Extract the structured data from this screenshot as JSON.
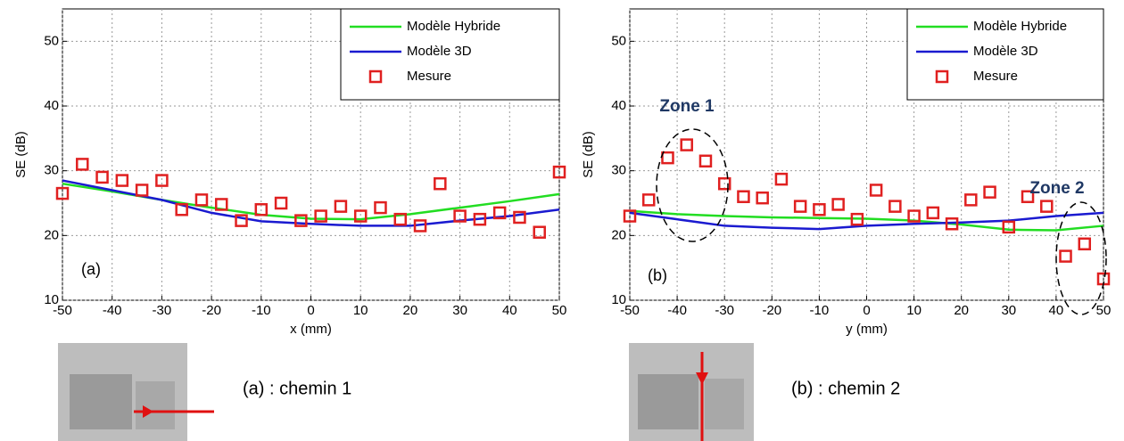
{
  "chart_data": [
    {
      "type": "line",
      "xlabel": "x (mm)",
      "ylabel": "SE (dB)",
      "panel_label": "(a)",
      "caption": "(a) : chemin 1",
      "xlim": [
        -50,
        50
      ],
      "ylim": [
        10,
        55
      ],
      "xticks": [
        -50,
        -40,
        -30,
        -20,
        -10,
        0,
        10,
        20,
        30,
        40,
        50
      ],
      "yticks": [
        10,
        20,
        30,
        40,
        50
      ],
      "grid": true,
      "legend": "upper right",
      "series": [
        {
          "name": "Modèle Hybride",
          "color": "#22dd22",
          "style": "line",
          "x": [
            -50,
            -40,
            -30,
            -20,
            -10,
            0,
            10,
            20,
            30,
            40,
            50
          ],
          "values": [
            28,
            26.8,
            25.5,
            24.3,
            23.2,
            22.6,
            22.5,
            23.3,
            24.3,
            25.3,
            26.4
          ]
        },
        {
          "name": "Modèle 3D",
          "color": "#1a1ad0",
          "style": "line",
          "x": [
            -50,
            -40,
            -30,
            -20,
            -10,
            0,
            10,
            20,
            30,
            40,
            50
          ],
          "values": [
            28.5,
            27,
            25.5,
            23.5,
            22.2,
            21.8,
            21.5,
            21.5,
            22.3,
            23,
            24
          ]
        },
        {
          "name": "Mesure",
          "color": "#e02020",
          "style": "square",
          "x": [
            -50,
            -46,
            -42,
            -38,
            -34,
            -30,
            -26,
            -22,
            -18,
            -14,
            -10,
            -6,
            -2,
            2,
            6,
            10,
            14,
            18,
            22,
            26,
            30,
            34,
            38,
            42,
            46,
            50
          ],
          "values": [
            26.5,
            31,
            29,
            28.5,
            27,
            28.5,
            24,
            25.5,
            24.8,
            22.3,
            24,
            25,
            22.3,
            23,
            24.5,
            23,
            24.3,
            22.5,
            21.5,
            28,
            23,
            22.5,
            23.5,
            22.8,
            20.5,
            29.8
          ]
        }
      ]
    },
    {
      "type": "line",
      "xlabel": "y (mm)",
      "ylabel": "SE (dB)",
      "panel_label": "(b)",
      "caption": "(b) : chemin 2",
      "xlim": [
        -50,
        50
      ],
      "ylim": [
        10,
        55
      ],
      "xticks": [
        -50,
        -40,
        -30,
        -20,
        -10,
        0,
        10,
        20,
        30,
        40,
        50
      ],
      "yticks": [
        10,
        20,
        30,
        40,
        50
      ],
      "grid": true,
      "legend": "upper right",
      "annotations": [
        "Zone 1",
        "Zone 2"
      ],
      "series": [
        {
          "name": "Modèle Hybride",
          "color": "#22dd22",
          "style": "line",
          "x": [
            -50,
            -40,
            -30,
            -20,
            -10,
            0,
            10,
            20,
            30,
            40,
            50
          ],
          "values": [
            23.8,
            23.3,
            23,
            22.8,
            22.7,
            22.6,
            22.3,
            21.7,
            20.9,
            20.8,
            21.5
          ]
        },
        {
          "name": "Modèle 3D",
          "color": "#1a1ad0",
          "style": "line",
          "x": [
            -50,
            -40,
            -30,
            -20,
            -10,
            0,
            10,
            20,
            30,
            40,
            50
          ],
          "values": [
            23.5,
            22.5,
            21.5,
            21.2,
            21,
            21.5,
            21.8,
            22,
            22.3,
            23,
            23.5
          ]
        },
        {
          "name": "Mesure",
          "color": "#e02020",
          "style": "square",
          "x": [
            -50,
            -46,
            -42,
            -38,
            -34,
            -30,
            -26,
            -22,
            -18,
            -14,
            -10,
            -6,
            -2,
            2,
            6,
            10,
            14,
            18,
            22,
            26,
            30,
            34,
            38,
            42,
            46,
            50
          ],
          "values": [
            23,
            25.5,
            32,
            34,
            31.5,
            28,
            26,
            25.8,
            28.7,
            24.5,
            24,
            24.8,
            22.5,
            27,
            24.5,
            23,
            23.5,
            21.8,
            25.5,
            26.7,
            21.3,
            26,
            24.5,
            16.8,
            18.7,
            13.3
          ]
        }
      ]
    }
  ]
}
